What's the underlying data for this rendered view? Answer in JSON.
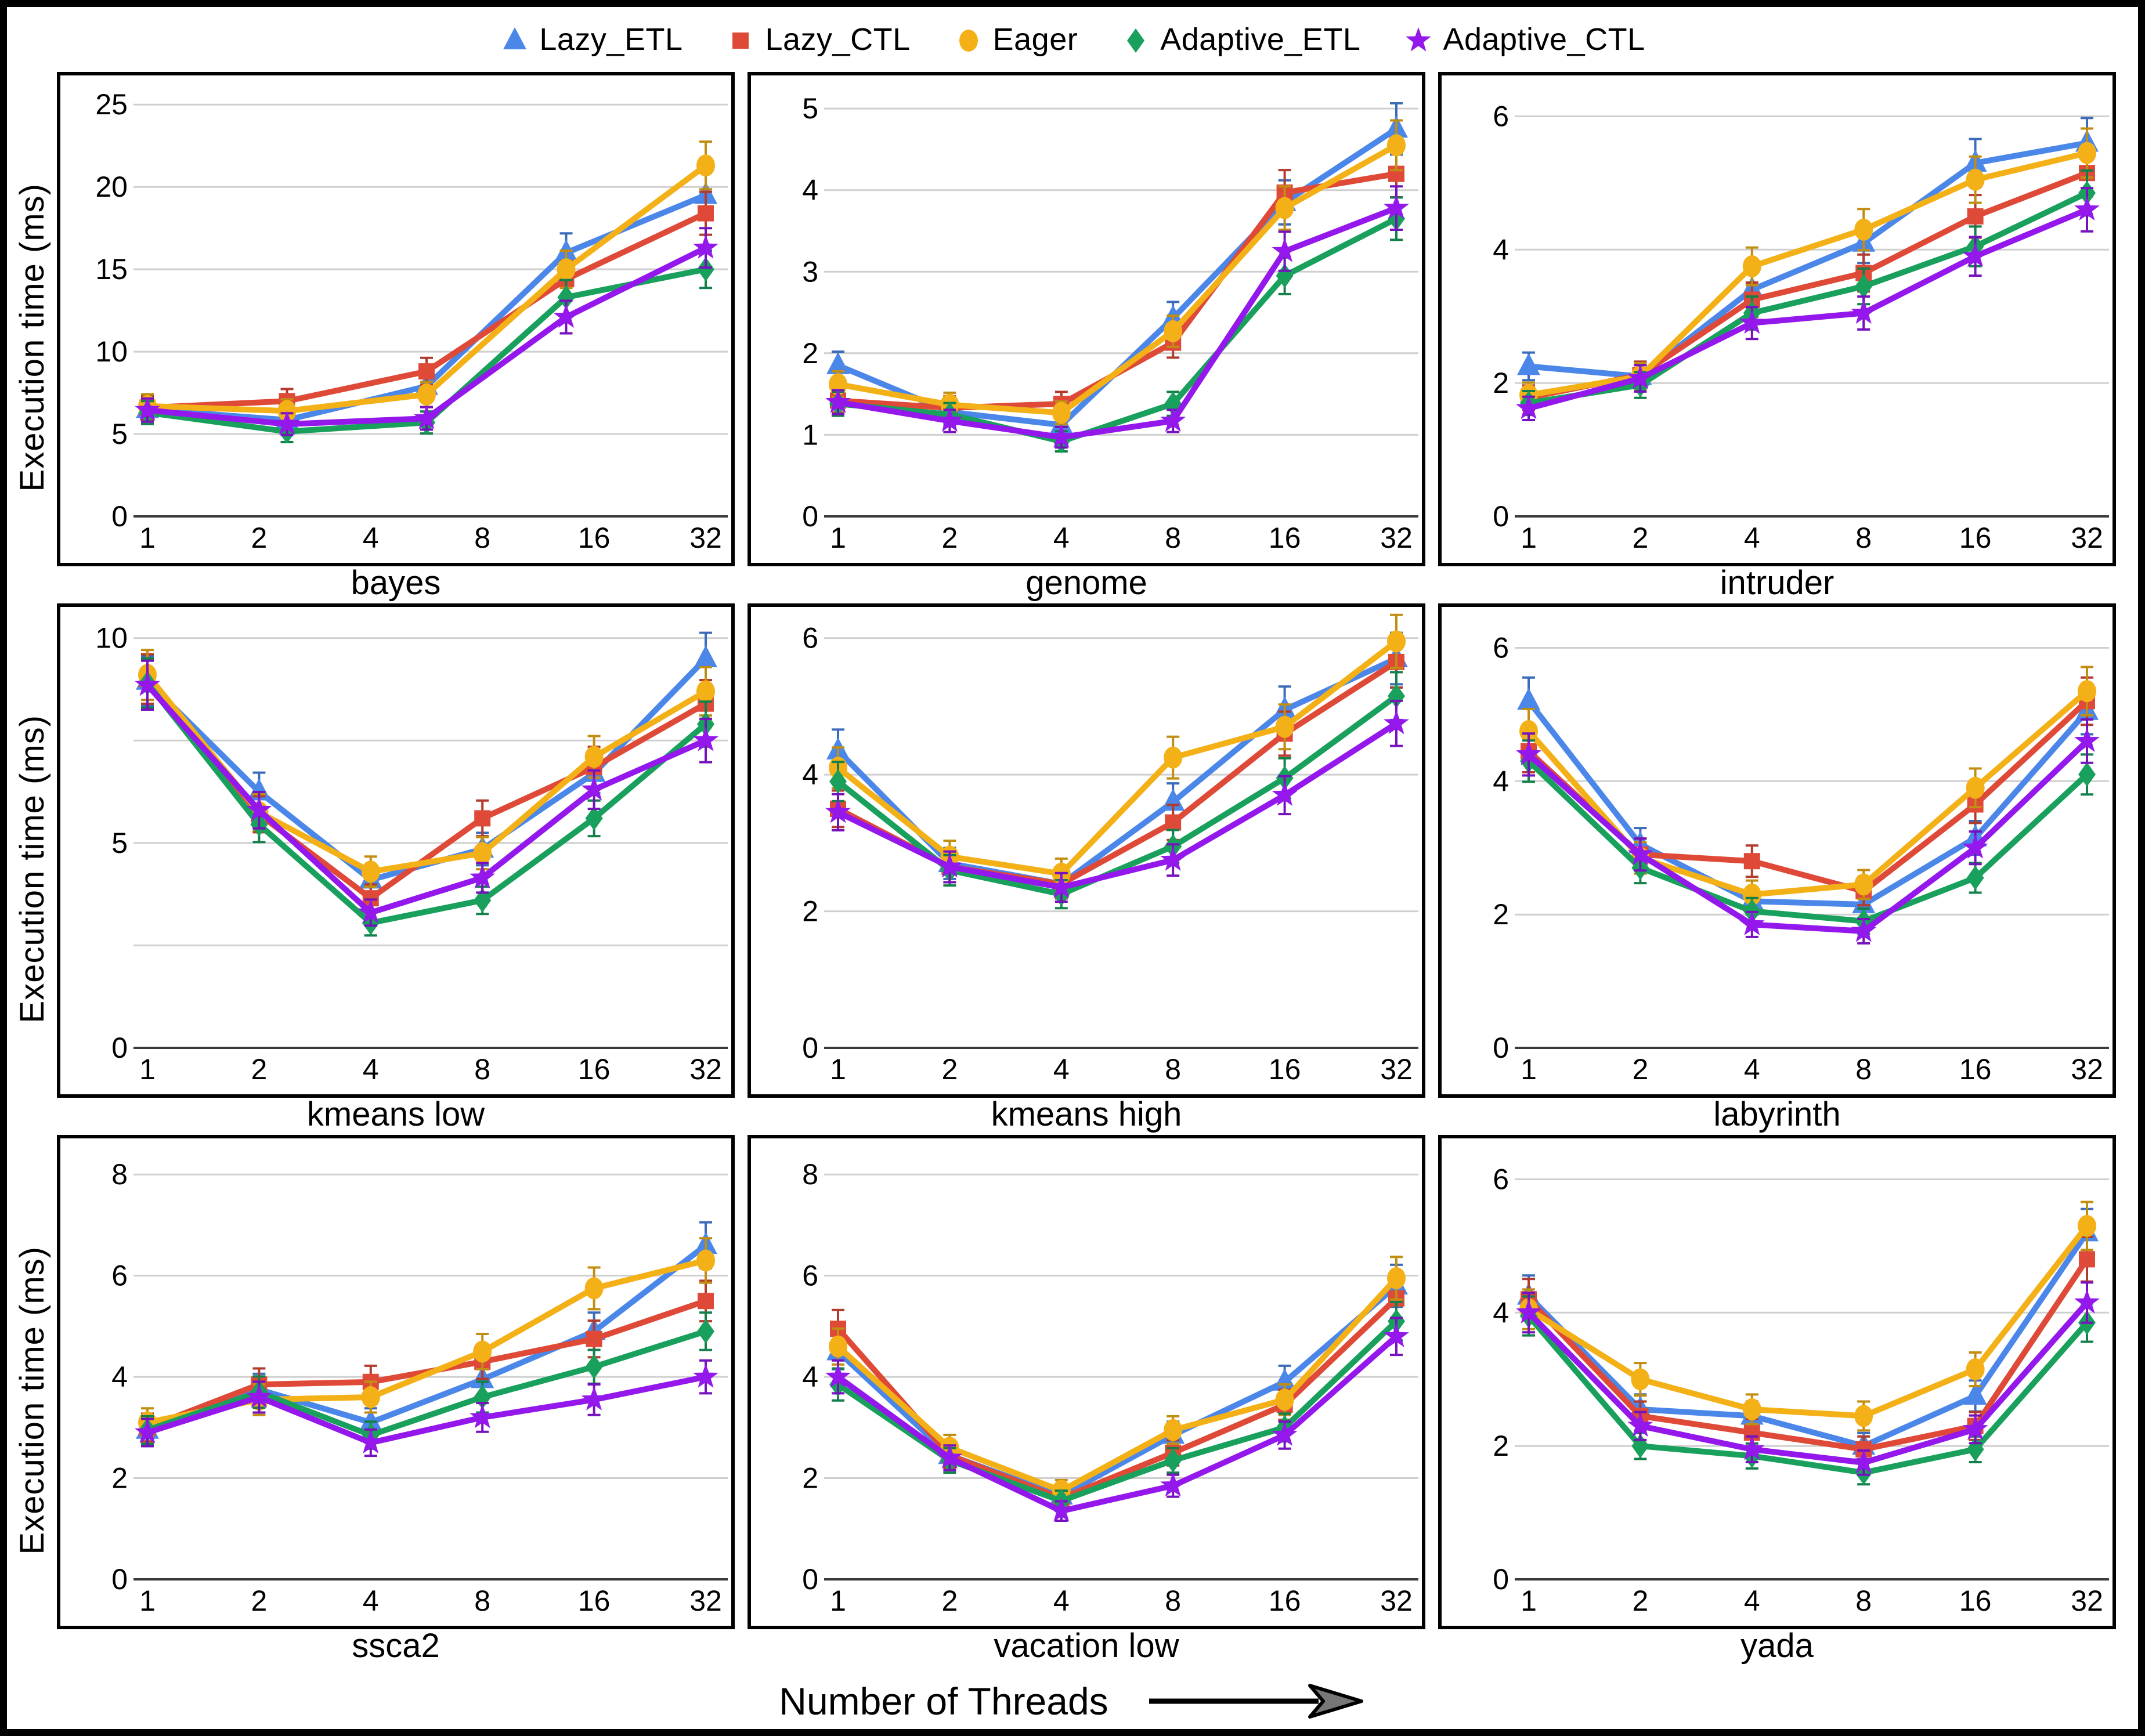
{
  "figure": {
    "xaxis_title": "Number of Threads",
    "ylabel": "Execution time (ms)",
    "x_tick_labels": [
      "1",
      "2",
      "4",
      "8",
      "16",
      "32"
    ]
  },
  "series_meta": [
    {
      "key": "lazy_etl",
      "label": "Lazy_ETL",
      "color": "#4b86e9",
      "marker": "triangle",
      "icon": "triangle-marker-icon"
    },
    {
      "key": "lazy_ctl",
      "label": "Lazy_CTL",
      "color": "#df4a38",
      "marker": "square",
      "icon": "square-marker-icon"
    },
    {
      "key": "eager",
      "label": "Eager",
      "color": "#f3b117",
      "marker": "circle",
      "icon": "circle-marker-icon"
    },
    {
      "key": "adaptive_etl",
      "label": "Adaptive_ETL",
      "color": "#18a05c",
      "marker": "diamond",
      "icon": "diamond-marker-icon"
    },
    {
      "key": "adaptive_ctl",
      "label": "Adaptive_CTL",
      "color": "#9417ec",
      "marker": "star",
      "icon": "star-marker-icon"
    }
  ],
  "chart_data": [
    {
      "type": "line",
      "title": "bayes",
      "ylabel": "Execution time (ms)",
      "xlabel": "Number of Threads",
      "threads_ticks": [
        1,
        2,
        4,
        8,
        16,
        32
      ],
      "x_log2": [
        0,
        1.25,
        2.5,
        3.75,
        5
      ],
      "ylim": [
        0,
        25.5
      ],
      "yticks": [
        0,
        5,
        10,
        15,
        20,
        25
      ],
      "ygrid": [
        5,
        10,
        15,
        20,
        25
      ],
      "series": [
        {
          "name": "Lazy_ETL",
          "values": [
            6.5,
            5.85,
            7.9,
            16.0,
            19.5
          ]
        },
        {
          "name": "Lazy_CTL",
          "values": [
            6.6,
            7.0,
            8.8,
            14.4,
            18.4
          ]
        },
        {
          "name": "Eager",
          "values": [
            6.7,
            6.4,
            7.4,
            15.0,
            21.3
          ]
        },
        {
          "name": "Adaptive_ETL",
          "values": [
            6.3,
            5.15,
            5.7,
            13.3,
            15.0
          ]
        },
        {
          "name": "Adaptive_CTL",
          "values": [
            6.45,
            5.6,
            5.95,
            12.1,
            16.3
          ]
        }
      ]
    },
    {
      "type": "line",
      "title": "genome",
      "ylabel": "Execution time (ms)",
      "xlabel": "Number of Threads",
      "threads_ticks": [
        1,
        2,
        4,
        8,
        16,
        32
      ],
      "x_log2": [
        0,
        1,
        2,
        3,
        4,
        5
      ],
      "ylim": [
        0,
        5.15
      ],
      "yticks": [
        0,
        1,
        2,
        3,
        4,
        5
      ],
      "ygrid": [
        1,
        2,
        3,
        4,
        5
      ],
      "series": [
        {
          "name": "Lazy_ETL",
          "values": [
            1.85,
            1.28,
            1.12,
            2.43,
            3.85,
            4.75
          ]
        },
        {
          "name": "Lazy_CTL",
          "values": [
            1.42,
            1.33,
            1.38,
            2.13,
            3.97,
            4.2
          ]
        },
        {
          "name": "Eager",
          "values": [
            1.62,
            1.37,
            1.27,
            2.27,
            3.78,
            4.55
          ]
        },
        {
          "name": "Adaptive_ETL",
          "values": [
            1.38,
            1.25,
            0.92,
            1.38,
            2.95,
            3.65
          ]
        },
        {
          "name": "Adaptive_CTL",
          "values": [
            1.4,
            1.17,
            0.97,
            1.17,
            3.25,
            3.78
          ]
        }
      ]
    },
    {
      "type": "line",
      "title": "intruder",
      "ylabel": "Execution time (ms)",
      "xlabel": "Number of Threads",
      "threads_ticks": [
        1,
        2,
        4,
        8,
        16,
        32
      ],
      "x_log2": [
        0,
        1,
        2,
        3,
        4,
        5
      ],
      "ylim": [
        0,
        6.3
      ],
      "yticks": [
        0,
        2,
        4,
        6
      ],
      "ygrid": [
        2,
        4,
        6
      ],
      "series": [
        {
          "name": "Lazy_ETL",
          "values": [
            2.25,
            2.1,
            3.4,
            4.1,
            5.3,
            5.6
          ]
        },
        {
          "name": "Lazy_CTL",
          "values": [
            1.78,
            2.12,
            3.25,
            3.65,
            4.5,
            5.15
          ]
        },
        {
          "name": "Eager",
          "values": [
            1.82,
            2.1,
            3.75,
            4.3,
            5.05,
            5.45
          ]
        },
        {
          "name": "Adaptive_ETL",
          "values": [
            1.7,
            1.97,
            3.05,
            3.45,
            4.05,
            4.85
          ]
        },
        {
          "name": "Adaptive_CTL",
          "values": [
            1.62,
            2.07,
            2.9,
            3.05,
            3.9,
            4.6
          ]
        }
      ]
    },
    {
      "type": "line",
      "title": "kmeans low",
      "ylabel": "Execution time (ms)",
      "xlabel": "Number of Threads",
      "threads_ticks": [
        1,
        2,
        4,
        8,
        16,
        32
      ],
      "x_log2": [
        0,
        1,
        2,
        3,
        4,
        5
      ],
      "ylim": [
        0,
        10.25
      ],
      "yticks": [
        0,
        5,
        10
      ],
      "ygrid": [
        2.5,
        5,
        7.5,
        10
      ],
      "series": [
        {
          "name": "Lazy_ETL",
          "values": [
            8.95,
            6.25,
            4.1,
            4.85,
            6.7,
            9.5
          ]
        },
        {
          "name": "Lazy_CTL",
          "values": [
            9.0,
            5.7,
            3.65,
            5.6,
            6.85,
            8.4
          ]
        },
        {
          "name": "Eager",
          "values": [
            9.1,
            5.75,
            4.3,
            4.75,
            7.1,
            8.7
          ]
        },
        {
          "name": "Adaptive_ETL",
          "values": [
            8.9,
            5.45,
            3.05,
            3.6,
            5.6,
            7.9
          ]
        },
        {
          "name": "Adaptive_CTL",
          "values": [
            8.85,
            5.8,
            3.3,
            4.15,
            6.3,
            7.5
          ]
        }
      ]
    },
    {
      "type": "line",
      "title": "kmeans high",
      "ylabel": "Execution time (ms)",
      "xlabel": "Number of Threads",
      "threads_ticks": [
        1,
        2,
        4,
        8,
        16,
        32
      ],
      "x_log2": [
        0,
        1,
        2,
        3,
        4,
        5
      ],
      "ylim": [
        0,
        6.15
      ],
      "yticks": [
        0,
        2,
        4,
        6
      ],
      "ygrid": [
        2,
        4,
        6
      ],
      "series": [
        {
          "name": "Lazy_ETL",
          "values": [
            4.35,
            2.7,
            2.4,
            3.6,
            4.95,
            5.7
          ]
        },
        {
          "name": "Lazy_CTL",
          "values": [
            3.5,
            2.65,
            2.4,
            3.3,
            4.6,
            5.65
          ]
        },
        {
          "name": "Eager",
          "values": [
            4.1,
            2.8,
            2.55,
            4.25,
            4.7,
            5.95
          ]
        },
        {
          "name": "Adaptive_ETL",
          "values": [
            3.9,
            2.6,
            2.25,
            2.95,
            3.95,
            5.15
          ]
        },
        {
          "name": "Adaptive_CTL",
          "values": [
            3.45,
            2.65,
            2.35,
            2.75,
            3.7,
            4.75
          ]
        }
      ]
    },
    {
      "type": "line",
      "title": "labyrinth",
      "ylabel": "Execution time (ms)",
      "xlabel": "Number of Threads",
      "threads_ticks": [
        1,
        2,
        4,
        8,
        16,
        32
      ],
      "x_log2": [
        0,
        1,
        2,
        3,
        4,
        5
      ],
      "ylim": [
        0,
        6.3
      ],
      "yticks": [
        0,
        2,
        4,
        6
      ],
      "ygrid": [
        2,
        4,
        6
      ],
      "series": [
        {
          "name": "Lazy_ETL",
          "values": [
            5.2,
            3.05,
            2.2,
            2.15,
            3.15,
            5.05
          ]
        },
        {
          "name": "Lazy_CTL",
          "values": [
            4.45,
            2.9,
            2.8,
            2.35,
            3.65,
            5.2
          ]
        },
        {
          "name": "Eager",
          "values": [
            4.75,
            2.85,
            2.3,
            2.45,
            3.9,
            5.35
          ]
        },
        {
          "name": "Adaptive_ETL",
          "values": [
            4.3,
            2.7,
            2.05,
            1.9,
            2.55,
            4.1
          ]
        },
        {
          "name": "Adaptive_CTL",
          "values": [
            4.4,
            2.9,
            1.85,
            1.75,
            3.0,
            4.6
          ]
        }
      ]
    },
    {
      "type": "line",
      "title": "ssca2",
      "ylabel": "Execution time (ms)",
      "xlabel": "Number of Threads",
      "threads_ticks": [
        1,
        2,
        4,
        8,
        16,
        32
      ],
      "x_log2": [
        0,
        1,
        2,
        3,
        4,
        5
      ],
      "ylim": [
        0,
        8.3
      ],
      "yticks": [
        0,
        2,
        4,
        6,
        8
      ],
      "ygrid": [
        2,
        4,
        6,
        8
      ],
      "series": [
        {
          "name": "Lazy_ETL",
          "values": [
            2.95,
            3.75,
            3.1,
            3.95,
            4.9,
            6.6
          ]
        },
        {
          "name": "Lazy_CTL",
          "values": [
            3.0,
            3.85,
            3.9,
            4.3,
            4.75,
            5.5
          ]
        },
        {
          "name": "Eager",
          "values": [
            3.1,
            3.55,
            3.6,
            4.5,
            5.75,
            6.3
          ]
        },
        {
          "name": "Adaptive_ETL",
          "values": [
            2.95,
            3.7,
            2.85,
            3.6,
            4.2,
            4.9
          ]
        },
        {
          "name": "Adaptive_CTL",
          "values": [
            2.9,
            3.6,
            2.7,
            3.2,
            3.55,
            4.0
          ]
        }
      ]
    },
    {
      "type": "line",
      "title": "vacation low",
      "ylabel": "Execution time (ms)",
      "xlabel": "Number of Threads",
      "threads_ticks": [
        1,
        2,
        4,
        8,
        16,
        32
      ],
      "x_log2": [
        0,
        1,
        2,
        3,
        4,
        5
      ],
      "ylim": [
        0,
        8.3
      ],
      "yticks": [
        0,
        2,
        4,
        6,
        8
      ],
      "ygrid": [
        2,
        4,
        6,
        8
      ],
      "series": [
        {
          "name": "Lazy_ETL",
          "values": [
            4.5,
            2.45,
            1.65,
            2.85,
            3.9,
            5.8
          ]
        },
        {
          "name": "Lazy_CTL",
          "values": [
            4.95,
            2.45,
            1.6,
            2.5,
            3.45,
            5.55
          ]
        },
        {
          "name": "Eager",
          "values": [
            4.6,
            2.6,
            1.75,
            2.95,
            3.55,
            5.95
          ]
        },
        {
          "name": "Adaptive_ETL",
          "values": [
            3.85,
            2.35,
            1.55,
            2.35,
            3.0,
            5.1
          ]
        },
        {
          "name": "Adaptive_CTL",
          "values": [
            4.0,
            2.4,
            1.35,
            1.85,
            2.85,
            4.8
          ]
        }
      ]
    },
    {
      "type": "line",
      "title": "yada",
      "ylabel": "Execution time (ms)",
      "xlabel": "Number of Threads",
      "threads_ticks": [
        1,
        2,
        4,
        8,
        16,
        32
      ],
      "x_log2": [
        0,
        1,
        2,
        3,
        4,
        5
      ],
      "ylim": [
        0,
        6.3
      ],
      "yticks": [
        0,
        2,
        4,
        6
      ],
      "ygrid": [
        2,
        4,
        6
      ],
      "series": [
        {
          "name": "Lazy_ETL",
          "values": [
            4.25,
            2.55,
            2.45,
            2.0,
            2.75,
            5.2
          ]
        },
        {
          "name": "Lazy_CTL",
          "values": [
            4.2,
            2.45,
            2.2,
            1.95,
            2.3,
            4.8
          ]
        },
        {
          "name": "Eager",
          "values": [
            4.05,
            3.0,
            2.55,
            2.45,
            3.15,
            5.3
          ]
        },
        {
          "name": "Adaptive_ETL",
          "values": [
            3.95,
            2.0,
            1.85,
            1.6,
            1.95,
            3.85
          ]
        },
        {
          "name": "Adaptive_CTL",
          "values": [
            4.0,
            2.3,
            1.95,
            1.75,
            2.25,
            4.15
          ]
        }
      ]
    }
  ]
}
